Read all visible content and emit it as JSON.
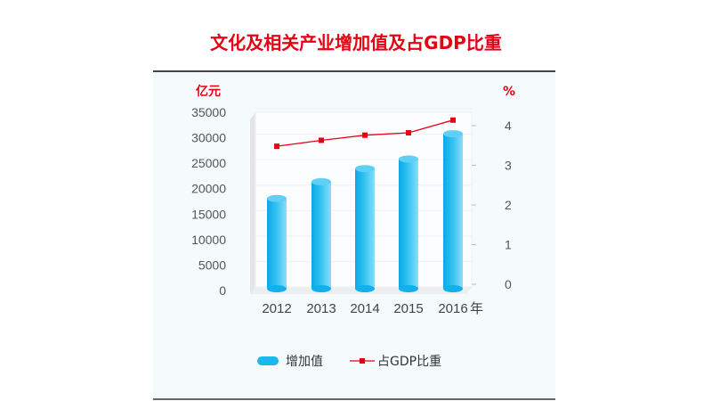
{
  "chart_data": {
    "type": "bar+line",
    "title": "文化及相关产业增加值及占GDP比重",
    "categories": [
      "2012",
      "2013",
      "2014",
      "2015",
      "2016"
    ],
    "x_unit": "年",
    "y_left": {
      "unit": "亿元",
      "range": [
        0,
        35000
      ],
      "ticks": [
        0,
        5000,
        10000,
        15000,
        20000,
        25000,
        30000,
        35000
      ]
    },
    "y_right": {
      "unit": "%",
      "range": [
        0,
        4
      ],
      "ticks": [
        0,
        1,
        2,
        3,
        4
      ]
    },
    "series": [
      {
        "name": "增加值",
        "type": "bar",
        "axis": "left",
        "color": "#1ab8ec",
        "values": [
          18071,
          21351,
          23940,
          25829,
          30785
        ]
      },
      {
        "name": "占GDP比重",
        "type": "line",
        "axis": "right",
        "color": "#e60012",
        "values": [
          3.48,
          3.63,
          3.76,
          3.82,
          4.14
        ]
      }
    ],
    "grid": true,
    "legend": "bottom"
  }
}
